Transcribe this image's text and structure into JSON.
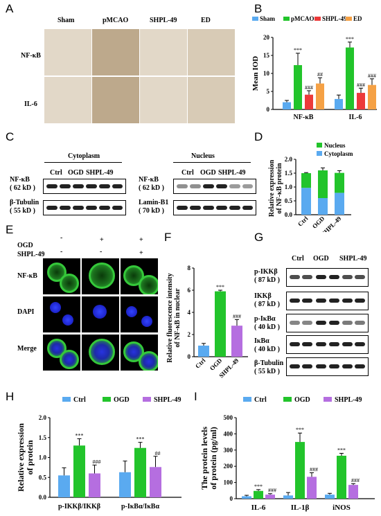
{
  "panels": {
    "A": "A",
    "B": "B",
    "C": "C",
    "D": "D",
    "E": "E",
    "F": "F",
    "G": "G",
    "H": "H",
    "I": "I"
  },
  "panelA": {
    "columns": [
      "Sham",
      "pMCAO",
      "SHPL-49",
      "ED"
    ],
    "rows": [
      "NF-κB",
      "IL-6"
    ]
  },
  "panelC": {
    "cytoplasm_title": "Cytoplasm",
    "nucleus_title": "Nucleus",
    "lanes": [
      "Ctrl",
      "OGD",
      "SHPL-49"
    ],
    "cyto_labels": [
      [
        "NF-κB",
        "( 62 kD )"
      ],
      [
        "β-Tubulin",
        "( 55 kD )"
      ]
    ],
    "nuc_labels": [
      [
        "NF-κB",
        "( 62 kD )"
      ],
      [
        "Lamin-B1",
        "( 70 kD )"
      ]
    ]
  },
  "panelE": {
    "ogd_label": "OGD",
    "shpl_label": "SHPL-49",
    "ogd_signs": [
      "-",
      "+",
      "+"
    ],
    "shpl_signs": [
      "-",
      "-",
      "+"
    ],
    "rows": [
      "NF-κB",
      "DAPI",
      "Merge"
    ]
  },
  "panelG": {
    "lanes": [
      "Ctrl",
      "OGD",
      "SHPL-49"
    ],
    "labels": [
      [
        "p-IKKβ",
        "( 87 kD )"
      ],
      [
        "IKKβ",
        "( 87 kD )"
      ],
      [
        "p-IκBα",
        "( 40 kD )"
      ],
      [
        "IκBα",
        "( 40 kD )"
      ],
      [
        "β-Tubulin",
        "( 55 kD )"
      ]
    ]
  },
  "colors": {
    "blue": "#5aaaf0",
    "green": "#22c42b",
    "red": "#ec3a3a",
    "orange": "#f5a145",
    "purple": "#b56ee0"
  },
  "chart_data": [
    {
      "id": "B",
      "type": "bar",
      "ylabel": "Mean IOD",
      "ylim": [
        0,
        20
      ],
      "yticks": [
        0,
        5,
        10,
        15,
        20
      ],
      "categories": [
        "NF-κB",
        "IL-6"
      ],
      "legend": "top",
      "series": [
        {
          "name": "Sham",
          "values": [
            2.0,
            2.9
          ],
          "errors": [
            0.5,
            1.1
          ],
          "sig": [
            "",
            ""
          ]
        },
        {
          "name": "pMCAO",
          "values": [
            12.3,
            17.2
          ],
          "errors": [
            3.3,
            1.5
          ],
          "sig": [
            "***",
            "***"
          ]
        },
        {
          "name": "SHPL-49",
          "values": [
            4.1,
            4.6
          ],
          "errors": [
            1.1,
            1.3
          ],
          "sig": [
            "###",
            "###"
          ]
        },
        {
          "name": "ED",
          "values": [
            7.2,
            6.8
          ],
          "errors": [
            1.6,
            1.7
          ],
          "sig": [
            "##",
            "###"
          ]
        }
      ]
    },
    {
      "id": "D",
      "type": "bar",
      "stacked": true,
      "ylabel": [
        "Relative expression",
        "of NF-κB protein"
      ],
      "ylim": [
        0,
        2.0
      ],
      "yticks": [
        "0.0",
        "0.5",
        "1.0",
        "1.5",
        "2.0"
      ],
      "categories": [
        "Ctrl",
        "OGD",
        "SHPL-49"
      ],
      "legend": "top-right",
      "series": [
        {
          "name": "Cytoplasm",
          "values": [
            0.97,
            0.6,
            0.79
          ]
        },
        {
          "name": "Nucleus",
          "values": [
            0.53,
            1.0,
            0.72
          ]
        }
      ],
      "errors": [
        0.02,
        0.09,
        0.08
      ]
    },
    {
      "id": "F",
      "type": "bar",
      "ylabel": [
        "Relative fluorescence intensity",
        "of NF-κB in nuclear"
      ],
      "ylim": [
        0,
        8
      ],
      "yticks": [
        0,
        2,
        4,
        6,
        8
      ],
      "categories": [
        "Ctrl",
        "OGD",
        "SHPL-49"
      ],
      "values": [
        1.0,
        5.9,
        2.8
      ],
      "errors": [
        0.2,
        0.1,
        0.55
      ],
      "sig": [
        "",
        "***",
        "###"
      ]
    },
    {
      "id": "H",
      "type": "bar",
      "ylabel": [
        "Relative expression",
        "of protein"
      ],
      "ylim": [
        0,
        2.0
      ],
      "yticks": [
        "0.0",
        "0.5",
        "1.0",
        "1.5",
        "2.0"
      ],
      "categories": [
        "p-IKKβ/IKKβ",
        "p-IκBα/IκBα"
      ],
      "legend": "top",
      "series": [
        {
          "name": "Ctrl",
          "values": [
            0.55,
            0.63
          ],
          "errors": [
            0.19,
            0.28
          ],
          "sig": [
            "",
            ""
          ]
        },
        {
          "name": "OGD",
          "values": [
            1.3,
            1.24
          ],
          "errors": [
            0.17,
            0.14
          ],
          "sig": [
            "***",
            "***"
          ]
        },
        {
          "name": "SHPL-49",
          "values": [
            0.6,
            0.76
          ],
          "errors": [
            0.21,
            0.27
          ],
          "sig": [
            "###",
            "##"
          ]
        }
      ]
    },
    {
      "id": "I",
      "type": "bar",
      "ylabel": [
        "The protein levels",
        "of protein (pg/ml)"
      ],
      "ylim": [
        0,
        500
      ],
      "yticks": [
        0,
        100,
        200,
        300,
        400,
        500
      ],
      "categories": [
        "IL-6",
        "IL-1β",
        "iNOS"
      ],
      "legend": "top",
      "series": [
        {
          "name": "Ctrl",
          "values": [
            15,
            20,
            25
          ],
          "errors": [
            6,
            18,
            8
          ],
          "sig": [
            "",
            "",
            ""
          ]
        },
        {
          "name": "OGD",
          "values": [
            48,
            350,
            265
          ],
          "errors": [
            8,
            55,
            15
          ],
          "sig": [
            "***",
            "***",
            "***"
          ]
        },
        {
          "name": "SHPL-49",
          "values": [
            25,
            135,
            85
          ],
          "errors": [
            6,
            25,
            8
          ],
          "sig": [
            "###",
            "###",
            "###"
          ]
        }
      ]
    }
  ]
}
